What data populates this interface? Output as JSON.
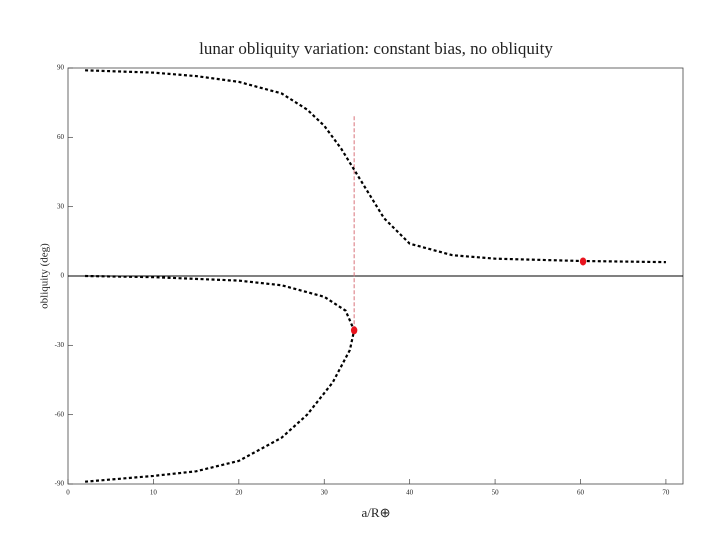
{
  "chart_data": {
    "type": "line",
    "title": "lunar obliquity variation: constant bias, no obliquity",
    "x_label": "a/R⊕",
    "y_label": "obliquity (deg)",
    "xlim": [
      0,
      72
    ],
    "ylim": [
      -90,
      90
    ],
    "xticks": [
      0,
      10,
      20,
      30,
      40,
      50,
      60,
      70
    ],
    "yticks": [
      90,
      60,
      30,
      0,
      -30,
      -60,
      -90
    ],
    "series": [
      {
        "x": [
          2,
          10,
          15,
          20,
          25,
          28,
          30,
          32,
          33.5,
          35,
          37,
          40,
          45,
          50,
          60,
          70
        ],
        "values": [
          89,
          88,
          86.5,
          84,
          79,
          72,
          65,
          55,
          46,
          37,
          25,
          14,
          9,
          7.5,
          6.5,
          6
        ],
        "color": "#000000"
      },
      {
        "x": [
          2,
          10,
          20,
          25,
          30,
          32.5,
          33.5,
          33,
          31,
          28,
          25,
          20,
          15,
          10,
          2
        ],
        "values": [
          0,
          -0.5,
          -2,
          -4,
          -9,
          -15,
          -23.5,
          -32,
          -46,
          -60,
          -70,
          -80,
          -84.5,
          -86.5,
          -89
        ],
        "color": "#000000"
      }
    ],
    "hline": 0,
    "vline": {
      "x": 33.5,
      "y": [
        -23.5,
        70
      ],
      "color": "#d9737a"
    },
    "markers": {
      "x": [
        33.5,
        60.3
      ],
      "values": [
        -23.5,
        6.3
      ],
      "color": "#e8141e"
    }
  }
}
